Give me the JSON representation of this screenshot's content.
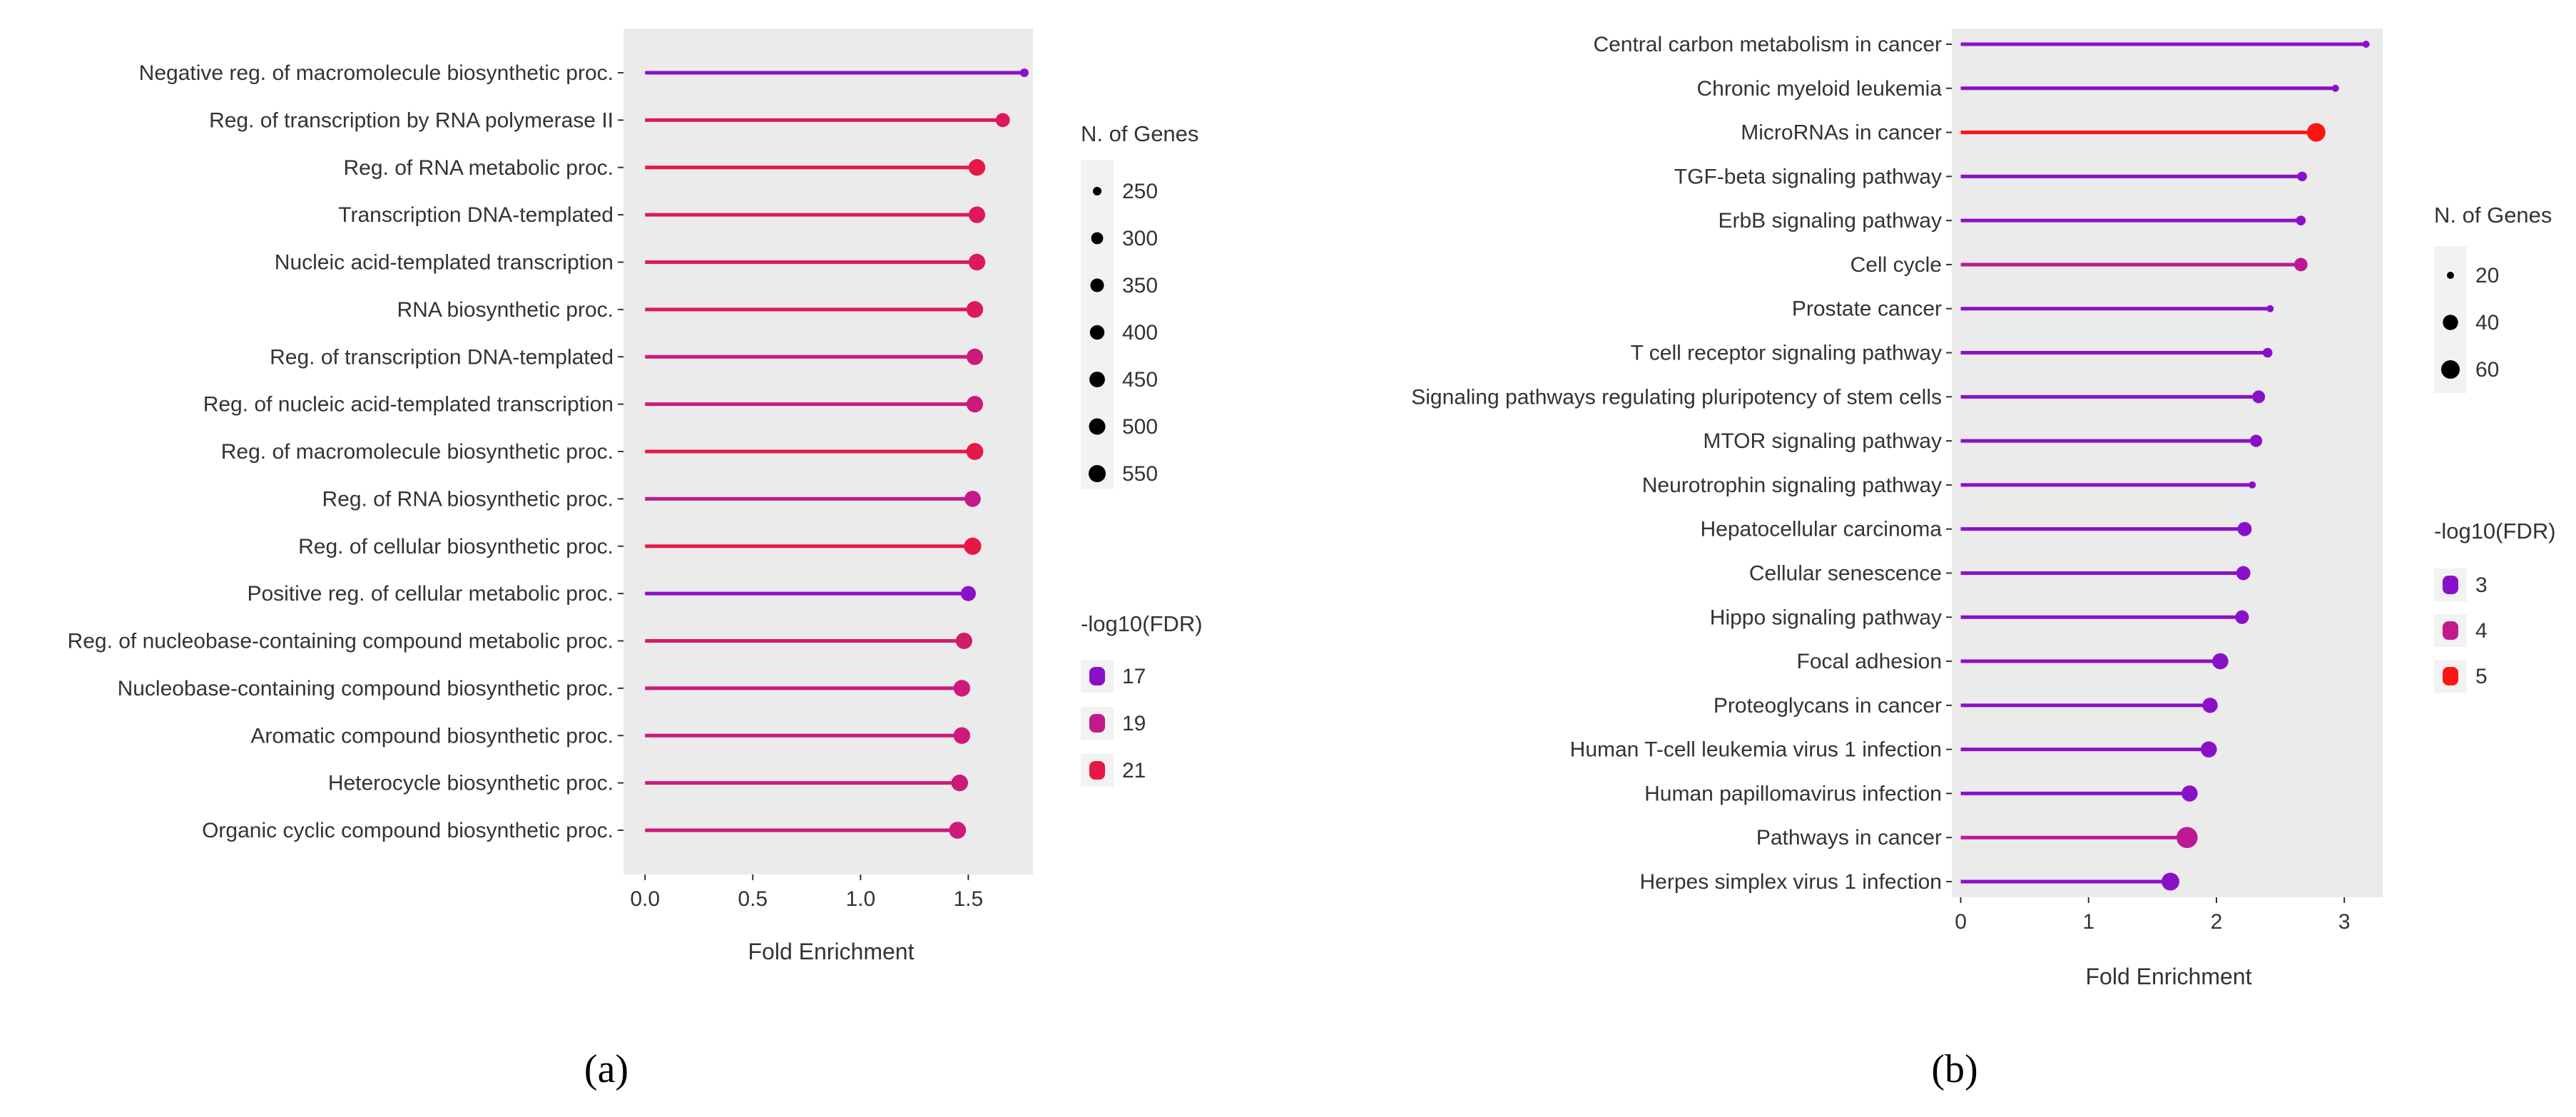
{
  "figure": {
    "panel_labels": [
      "(a)",
      "(b)"
    ]
  },
  "chart_data": [
    {
      "type": "lollipop",
      "panel": "(a)",
      "xlabel": "Fold Enrichment",
      "xlim": [
        -0.1,
        1.8
      ],
      "xticks": [
        0.0,
        0.5,
        1.0,
        1.5
      ],
      "xtick_labels": [
        "0.0",
        "0.5",
        "1.0",
        "1.5"
      ],
      "grid": false,
      "size_legend": {
        "title": "N. of Genes",
        "values": [
          "250",
          "300",
          "350",
          "400",
          "450",
          "500",
          "550"
        ]
      },
      "color_legend": {
        "title": "-log10(FDR)",
        "values": [
          "17",
          "19",
          "21"
        ],
        "colors": [
          "#8a10c8",
          "#c21a8c",
          "#e61845"
        ]
      },
      "categories": [
        "Negative reg. of macromolecule biosynthetic proc.",
        "Reg. of transcription by RNA polymerase II",
        "Reg. of RNA metabolic proc.",
        "Transcription DNA-templated",
        "Nucleic acid-templated transcription",
        "RNA biosynthetic proc.",
        "Reg. of transcription DNA-templated",
        "Reg. of nucleic acid-templated transcription",
        "Reg. of macromolecule biosynthetic proc.",
        "Reg. of RNA biosynthetic proc.",
        "Reg. of cellular biosynthetic proc.",
        "Positive reg. of cellular metabolic proc.",
        "Reg. of nucleobase-containing compound metabolic proc.",
        "Nucleobase-containing compound biosynthetic proc.",
        "Aromatic compound biosynthetic proc.",
        "Heterocycle biosynthetic proc.",
        "Organic cyclic compound biosynthetic proc."
      ],
      "fold_enrichment": [
        1.76,
        1.66,
        1.54,
        1.54,
        1.54,
        1.53,
        1.53,
        1.53,
        1.53,
        1.52,
        1.52,
        1.5,
        1.48,
        1.47,
        1.47,
        1.46,
        1.45
      ],
      "n_genes": [
        250,
        380,
        520,
        510,
        520,
        520,
        500,
        510,
        540,
        490,
        560,
        430,
        500,
        520,
        520,
        520,
        540
      ],
      "neg_log10_fdr": [
        16.5,
        20.5,
        21.5,
        20.5,
        20.5,
        20.5,
        19.5,
        19.5,
        21.5,
        19.0,
        21.5,
        17.0,
        20.0,
        19.5,
        19.5,
        19.5,
        19.5
      ]
    },
    {
      "type": "lollipop",
      "panel": "(b)",
      "xlabel": "Fold Enrichment",
      "xlim": [
        -0.07,
        3.3
      ],
      "xticks": [
        0,
        1,
        2,
        3
      ],
      "xtick_labels": [
        "0",
        "1",
        "2",
        "3"
      ],
      "grid": false,
      "size_legend": {
        "title": "N. of Genes",
        "values": [
          "20",
          "40",
          "60"
        ]
      },
      "color_legend": {
        "title": "-log10(FDR)",
        "values": [
          "3",
          "4",
          "5"
        ],
        "colors": [
          "#8a10c8",
          "#c21a8c",
          "#ff1414"
        ]
      },
      "categories": [
        "Central carbon metabolism in cancer",
        "Chronic myeloid leukemia",
        "MicroRNAs in cancer",
        "TGF-beta signaling pathway",
        "ErbB signaling pathway",
        "Cell cycle",
        "Prostate cancer",
        "T cell receptor signaling pathway",
        "Signaling pathways regulating pluripotency of stem cells",
        "MTOR signaling pathway",
        "Neurotrophin signaling pathway",
        "Hepatocellular carcinoma",
        "Cellular senescence",
        "Hippo signaling pathway",
        "Focal adhesion",
        "Proteoglycans in cancer",
        "Human T-cell leukemia virus 1 infection",
        "Human papillomavirus infection",
        "Pathways in cancer",
        "Herpes simplex virus 1 infection"
      ],
      "fold_enrichment": [
        3.17,
        2.93,
        2.78,
        2.67,
        2.66,
        2.66,
        2.42,
        2.4,
        2.33,
        2.31,
        2.28,
        2.22,
        2.21,
        2.2,
        2.03,
        1.95,
        1.94,
        1.79,
        1.77,
        1.64
      ],
      "n_genes": [
        18,
        20,
        60,
        22,
        22,
        32,
        20,
        22,
        30,
        28,
        20,
        35,
        35,
        33,
        45,
        40,
        45,
        45,
        80,
        55
      ],
      "neg_log10_fdr": [
        3.0,
        3.0,
        5.0,
        3.0,
        2.6,
        3.9,
        2.2,
        2.2,
        3.0,
        3.0,
        2.0,
        3.0,
        2.8,
        3.0,
        2.6,
        2.2,
        2.2,
        2.8,
        3.9,
        3.0
      ]
    }
  ]
}
